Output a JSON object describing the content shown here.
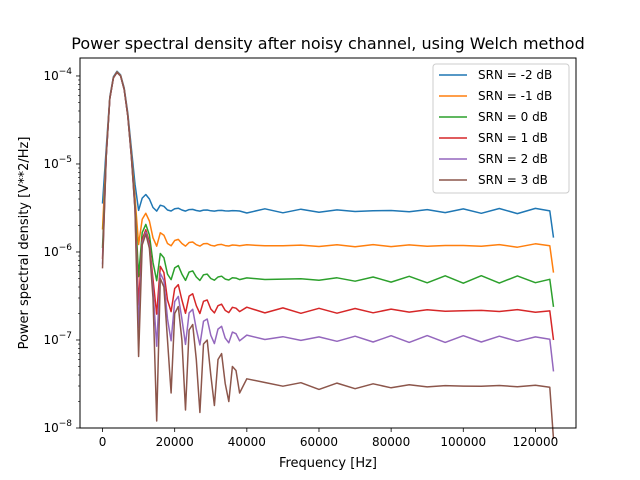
{
  "chart_data": {
    "type": "line",
    "title": "Power spectral density after noisy channel, using Welch method",
    "xlabel": "Frequency [Hz]",
    "ylabel": "Power spectral density [V**2/Hz]",
    "xscale": "linear",
    "yscale": "log",
    "xlim": [
      -6250,
      131250
    ],
    "ylim": [
      1e-08,
      0.00016
    ],
    "xticks": [
      0,
      20000,
      40000,
      60000,
      80000,
      100000,
      120000
    ],
    "xtick_labels": [
      "0",
      "20000",
      "40000",
      "60000",
      "80000",
      "100000",
      "120000"
    ],
    "yticks": [
      1e-08,
      1e-07,
      1e-06,
      1e-05,
      0.0001
    ],
    "ytick_labels": [
      {
        "base": "10",
        "exp": "−8"
      },
      {
        "base": "10",
        "exp": "−7"
      },
      {
        "base": "10",
        "exp": "−6"
      },
      {
        "base": "10",
        "exp": "−5"
      },
      {
        "base": "10",
        "exp": "−4"
      }
    ],
    "grid": false,
    "legend_position": "top-right",
    "x": [
      0,
      1000,
      2000,
      3000,
      4000,
      5000,
      6000,
      7000,
      8000,
      9000,
      10000,
      11000,
      12000,
      13000,
      14000,
      15000,
      16000,
      17000,
      18000,
      19000,
      20000,
      21000,
      22000,
      23000,
      24000,
      25000,
      26000,
      27000,
      28000,
      29000,
      30000,
      31000,
      32000,
      33000,
      34000,
      35000,
      36000,
      37000,
      38000,
      40000,
      45000,
      50000,
      55000,
      60000,
      65000,
      70000,
      75000,
      80000,
      85000,
      90000,
      95000,
      100000,
      105000,
      110000,
      115000,
      120000,
      124000,
      125000
    ],
    "signal": [
      6.5e-07,
      1.2e-05,
      5.5e-05,
      9.5e-05,
      0.00011,
      0.0001,
      7e-05,
      3.5e-05,
      1.2e-05,
      3e-06,
      6.5e-08,
      1.2e-06,
      1.6e-06,
      1.1e-06,
      3e-07,
      1.2e-08,
      5e-07,
      4e-07,
      1e-07,
      2.5e-08,
      2e-07,
      2.4e-07,
      1e-07,
      1.6e-08,
      1.3e-07,
      1.5e-07,
      6e-08,
      1.5e-08,
      9e-08,
      1e-07,
      4e-08,
      1.8e-08,
      6e-08,
      7e-08,
      3.2e-08,
      2e-08,
      5e-08,
      4.5e-08,
      2.5e-08,
      4e-08,
      3e-08,
      3.3e-08,
      3e-08,
      3e-08,
      3e-08,
      3e-08,
      3e-08,
      3e-08,
      3e-08,
      3e-08,
      3e-08,
      3e-08,
      3e-08,
      3e-08,
      3e-08,
      3e-08,
      2.9e-08,
      1.5e-08
    ],
    "series": [
      {
        "name": "SRN = -2 dB",
        "color": "#1f77b4",
        "noise": 2.9e-06
      },
      {
        "name": "SRN = -1 dB",
        "color": "#ff7f0e",
        "noise": 1.15e-06
      },
      {
        "name": "SRN = 0 dB",
        "color": "#2ca02c",
        "noise": 4.6e-07
      },
      {
        "name": "SRN = 1 dB",
        "color": "#d62728",
        "noise": 1.85e-07
      },
      {
        "name": "SRN = 2 dB",
        "color": "#9467bd",
        "noise": 7.3e-08
      },
      {
        "name": "SRN = 3 dB",
        "color": "#8c564b",
        "noise": 0
      }
    ]
  }
}
